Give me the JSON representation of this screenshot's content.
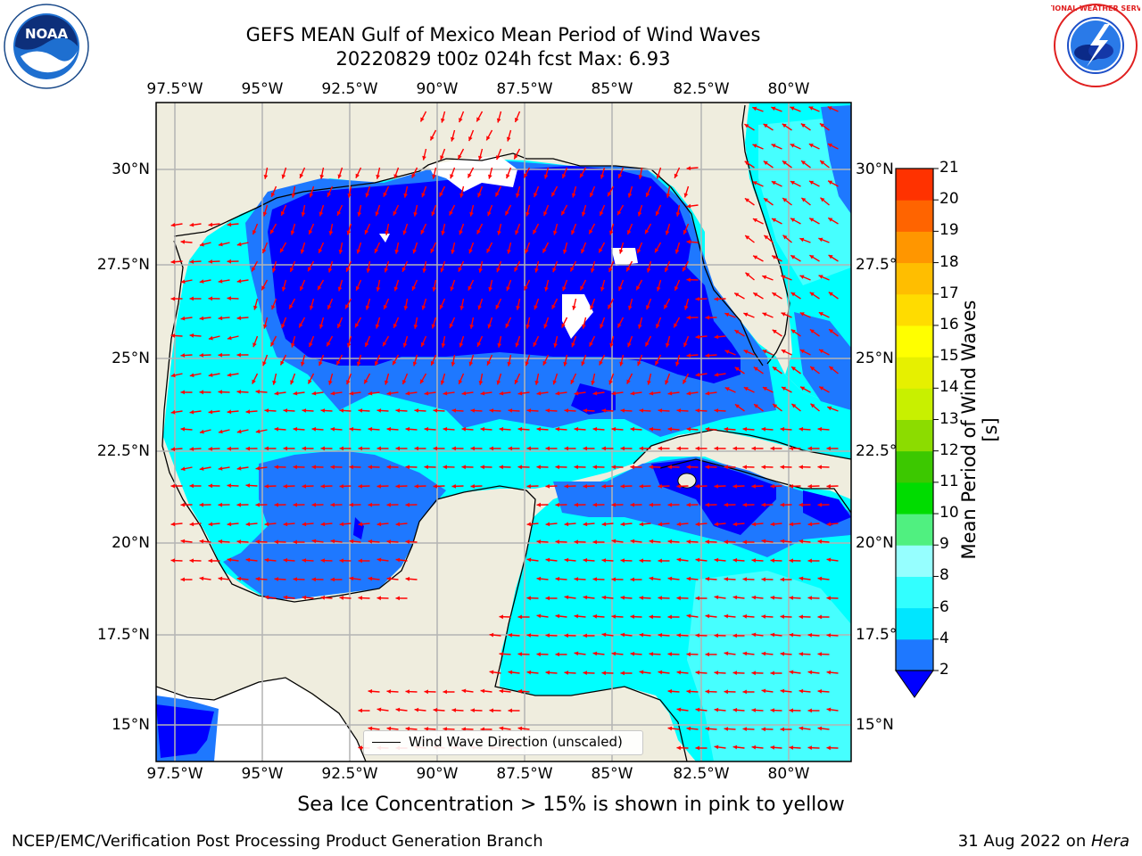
{
  "header": {
    "title_line1": "GEFS MEAN Gulf of Mexico Mean Period of Wind Waves",
    "title_line2": "20220829 t00z 024h fcst   Max: 6.93"
  },
  "logos": {
    "left": "NOAA",
    "right": "NATIONAL WEATHER SERVICE"
  },
  "map": {
    "lon_labels": [
      "97.5°W",
      "95°W",
      "92.5°W",
      "90°W",
      "87.5°W",
      "85°W",
      "82.5°W",
      "80°W"
    ],
    "lat_labels": [
      "30°N",
      "27.5°N",
      "25°N",
      "22.5°N",
      "20°N",
      "17.5°N",
      "15°N"
    ],
    "legend_label": "Wind Wave Direction (unscaled)",
    "colors": {
      "land": "#efedde",
      "ocean_low": "#0000ff",
      "ocean_2_4": "#1e78ff",
      "ocean_4_6": "#00ffff",
      "ocean_6_8": "#46ffff",
      "arrow": "#ff0000",
      "grid": "#b4b4b4"
    }
  },
  "colorbar": {
    "label": "Mean Period of Wind Waves [s]",
    "ticks": [
      "2",
      "4",
      "6",
      "8",
      "9",
      "10",
      "11",
      "12",
      "13",
      "14",
      "15",
      "16",
      "17",
      "18",
      "19",
      "20",
      "21"
    ],
    "colors": [
      "#1e78ff",
      "#00e6ff",
      "#32ffff",
      "#96ffff",
      "#50f080",
      "#00dc00",
      "#3cc800",
      "#8cdc00",
      "#c8f000",
      "#e6f000",
      "#ffff00",
      "#ffdc00",
      "#ffbe00",
      "#ff9600",
      "#ff6400",
      "#ff3200",
      "#ff0000"
    ],
    "extend_color": "#0000ff"
  },
  "notes": {
    "sea_ice": "Sea Ice Concentration > 15% is shown in pink to yellow",
    "credit": "NCEP/EMC/Verification Post Processing Product Generation Branch",
    "date": "31 Aug 2022 on ",
    "machine": "Hera"
  }
}
